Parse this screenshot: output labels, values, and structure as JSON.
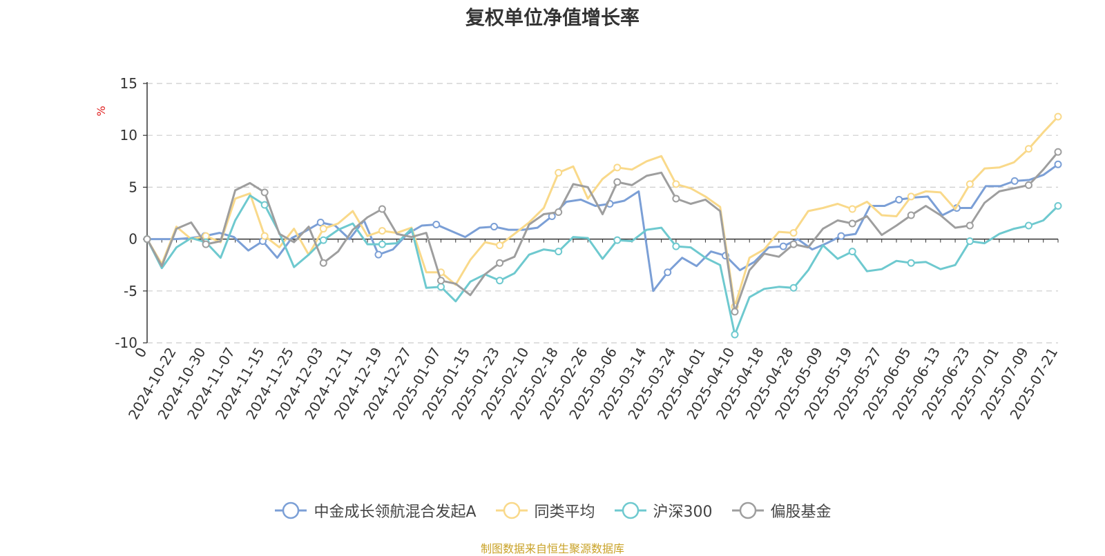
{
  "title": "复权单位净值增长率",
  "source": "制图数据来自恒生聚源数据库",
  "chart_data": {
    "type": "line",
    "ylabel": "%",
    "ylim": [
      -10,
      15
    ],
    "yticks": [
      15,
      10,
      5,
      0,
      -5,
      -10
    ],
    "grid": true,
    "legend_position": "bottom",
    "x_labels": [
      "0",
      "2024-10-22",
      "2024-10-30",
      "2024-11-07",
      "2024-11-15",
      "2024-11-25",
      "2024-12-03",
      "2024-12-11",
      "2024-12-19",
      "2024-12-27",
      "2025-01-07",
      "2025-01-15",
      "2025-01-23",
      "2025-02-10",
      "2025-02-18",
      "2025-02-26",
      "2025-03-06",
      "2025-03-14",
      "2025-03-24",
      "2025-04-01",
      "2025-04-10",
      "2025-04-18",
      "2025-04-28",
      "2025-05-09",
      "2025-05-19",
      "2025-05-27",
      "2025-06-05",
      "2025-06-13",
      "2025-06-23",
      "2025-07-01",
      "2025-07-09",
      "2025-07-21"
    ],
    "series": [
      {
        "name": "中金成长领航混合发起A",
        "color": "#7b9fd6",
        "values": [
          0,
          0,
          0,
          0.1,
          0.3,
          0.6,
          0.2,
          -1.1,
          -0.2,
          -1.8,
          0.1,
          0.8,
          1.6,
          1.3,
          0,
          1.8,
          -1.5,
          -1,
          0.5,
          1.3,
          1.4,
          0.8,
          0.2,
          1.1,
          1.2,
          0.9,
          0.9,
          1.1,
          2.2,
          3.6,
          3.8,
          3.2,
          3.4,
          3.7,
          4.6,
          -5,
          -3.2,
          -1.8,
          -2.6,
          -1.2,
          -1.6,
          -3,
          -2.2,
          -0.8,
          -0.7,
          0,
          -1,
          -0.4,
          0.3,
          0.5,
          3.2,
          3.2,
          3.8,
          4,
          4.1,
          2.3,
          3,
          3,
          5.1,
          5.1,
          5.6,
          5.7,
          6.2,
          7.2
        ]
      },
      {
        "name": "同类平均",
        "color": "#f9d98a",
        "values": [
          0,
          -2.4,
          1.2,
          0,
          0.3,
          -0.3,
          3.9,
          4.4,
          0.3,
          -0.8,
          1,
          -1.5,
          1,
          1.5,
          2.7,
          0.3,
          0.8,
          0.6,
          1.1,
          -3.2,
          -3.2,
          -4.4,
          -2,
          -0.3,
          -0.6,
          0.5,
          1.6,
          3,
          6.4,
          7,
          3.9,
          5.8,
          6.9,
          6.7,
          7.5,
          8,
          5.3,
          4.9,
          4.1,
          3.1,
          -6.5,
          -1.8,
          -1,
          0.7,
          0.6,
          2.7,
          3,
          3.4,
          2.9,
          3.6,
          2.3,
          2.2,
          4.1,
          4.6,
          4.5,
          2.9,
          5.3,
          6.8,
          6.9,
          7.4,
          8.7,
          10.3,
          11.8
        ]
      },
      {
        "name": "沪深300",
        "color": "#6ec9cf",
        "values": [
          0,
          -2.8,
          -0.8,
          0.1,
          -0.3,
          -1.8,
          1.8,
          4.2,
          3.3,
          0.6,
          -2.7,
          -1.5,
          -0.1,
          0.9,
          1.5,
          -0.5,
          -0.5,
          -0.4,
          1,
          -4.7,
          -4.6,
          -6,
          -4.1,
          -3.4,
          -4,
          -3.3,
          -1.5,
          -1,
          -1.2,
          0.2,
          0.1,
          -1.9,
          -0.1,
          -0.2,
          0.9,
          1.1,
          -0.7,
          -0.8,
          -1.8,
          -2.5,
          -9.2,
          -5.6,
          -4.8,
          -4.6,
          -4.7,
          -3,
          -0.6,
          -1.9,
          -1.2,
          -3.1,
          -2.9,
          -2.1,
          -2.3,
          -2.2,
          -2.9,
          -2.5,
          -0.2,
          -0.4,
          0.5,
          1,
          1.3,
          1.8,
          3.2
        ]
      },
      {
        "name": "偏股基金",
        "color": "#9e9e9e",
        "values": [
          0,
          -2.6,
          1,
          1.6,
          -0.5,
          -0.2,
          4.7,
          5.4,
          4.5,
          0.5,
          -0.3,
          1.2,
          -2.3,
          -1.2,
          0.9,
          2.1,
          2.9,
          0.5,
          0.2,
          0.6,
          -4,
          -4.3,
          -5.4,
          -3.4,
          -2.3,
          -1.7,
          1.4,
          2.4,
          2.6,
          5.3,
          5,
          2.4,
          5.5,
          5.2,
          6.1,
          6.4,
          3.9,
          3.4,
          3.8,
          2.7,
          -7,
          -3,
          -1.4,
          -1.7,
          -0.5,
          -0.8,
          1,
          1.8,
          1.5,
          2.2,
          0.4,
          1.3,
          2.3,
          3.2,
          2.3,
          1.1,
          1.3,
          3.5,
          4.6,
          4.9,
          5.2,
          6.7,
          8.4
        ]
      }
    ]
  }
}
